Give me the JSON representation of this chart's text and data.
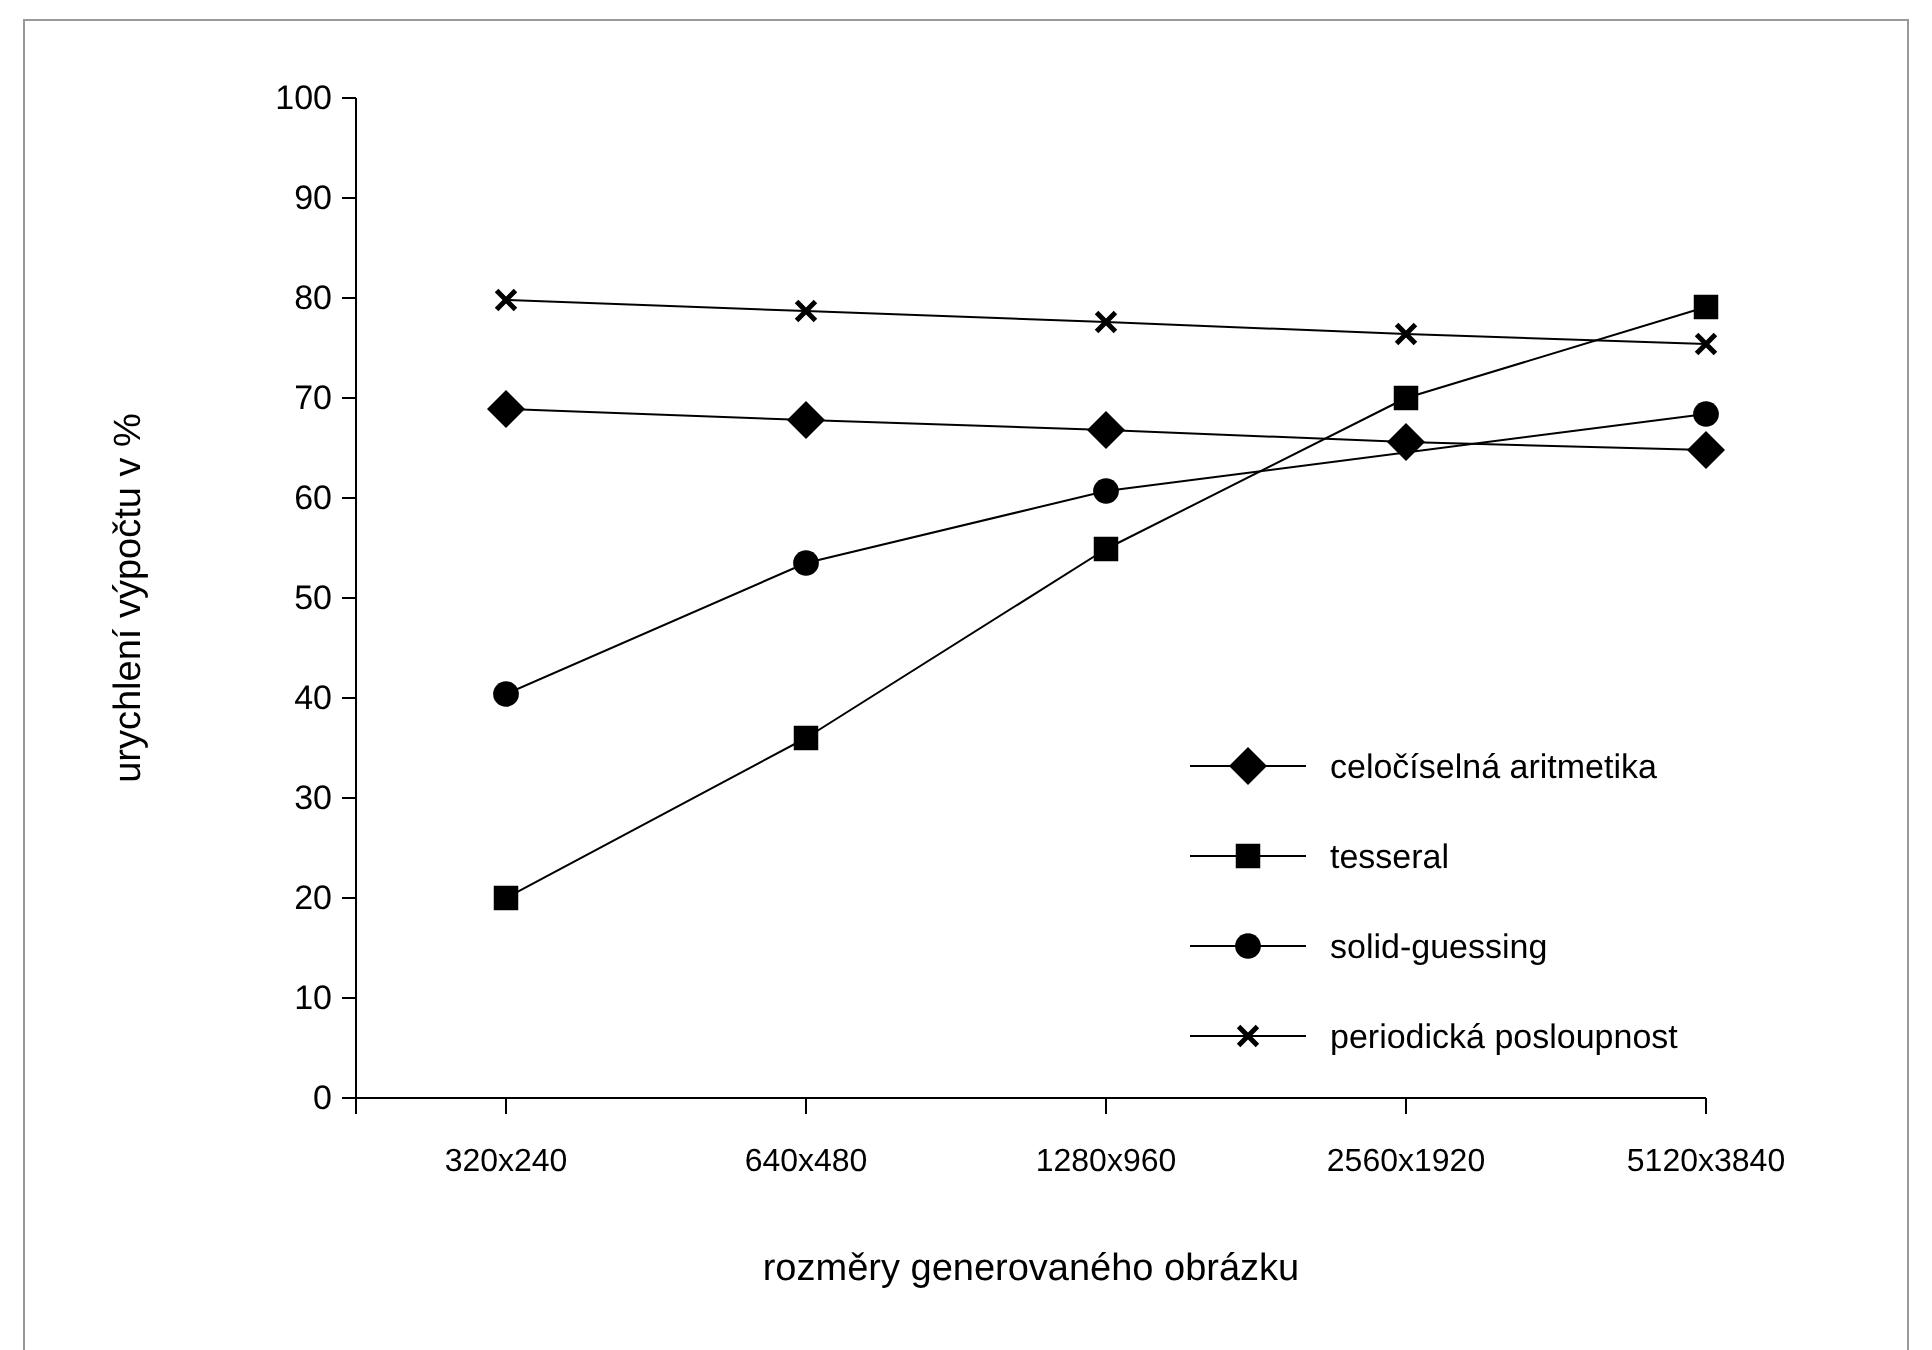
{
  "chart_data": {
    "type": "line",
    "xlabel": "rozměry generovaného obrázku",
    "ylabel": "urychlení výpočtu v %",
    "categories": [
      "320x240",
      "640x480",
      "1280x960",
      "2560x1920",
      "5120x3840"
    ],
    "ylim": [
      0,
      100
    ],
    "yticks": [
      0,
      10,
      20,
      30,
      40,
      50,
      60,
      70,
      80,
      90,
      100
    ],
    "grid": false,
    "legend": "bottom right",
    "series": [
      {
        "name": "celočíselná aritmetika",
        "color": "#000000",
        "marker": "diamond",
        "values": [
          68.9,
          67.8,
          66.8,
          65.6,
          64.8
        ]
      },
      {
        "name": "tesseral",
        "color": "#000000",
        "marker": "square",
        "values": [
          20,
          36,
          54.9,
          70,
          79.1
        ]
      },
      {
        "name": "solid-guessing",
        "color": "#000000",
        "marker": "circle",
        "values": [
          40.4,
          53.5,
          60.7,
          null,
          68.4
        ]
      },
      {
        "name": "periodická posloupnost",
        "color": "#000000",
        "marker": "cross",
        "values": [
          79.8,
          78.7,
          77.6,
          76.4,
          75.4
        ]
      }
    ]
  }
}
